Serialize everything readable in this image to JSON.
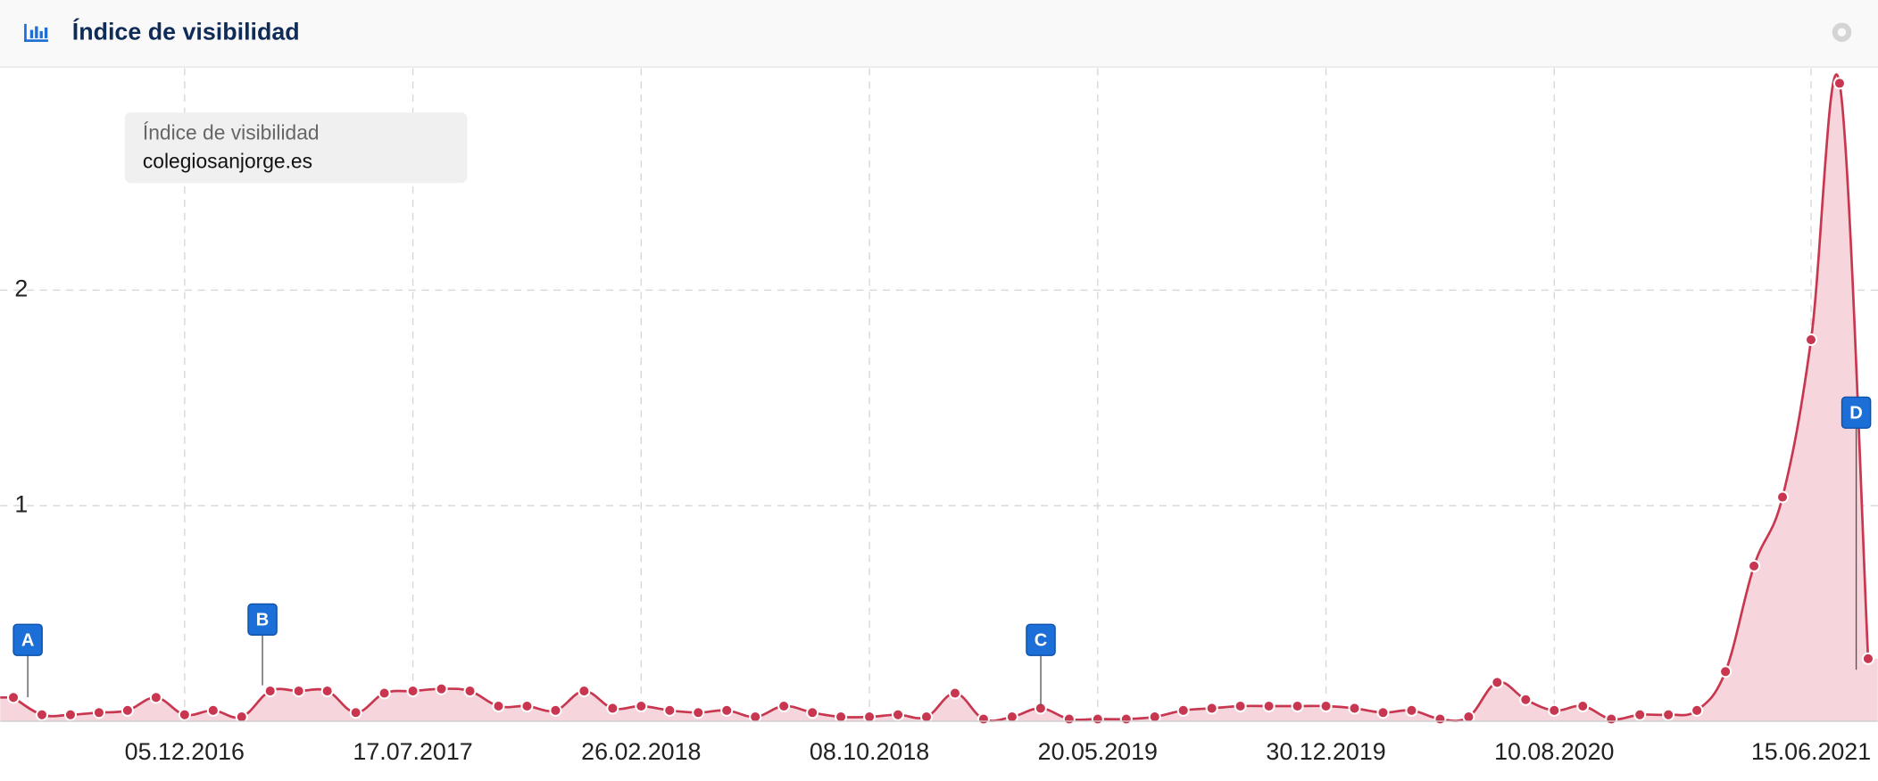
{
  "header": {
    "title": "Índice de visibilidad"
  },
  "chart_data": {
    "type": "line",
    "legend_title": "Índice de visibilidad",
    "categories": [
      null,
      null,
      null,
      null,
      null,
      null,
      "05.12.2016",
      null,
      null,
      null,
      null,
      null,
      null,
      null,
      "17.07.2017",
      null,
      null,
      null,
      null,
      null,
      null,
      null,
      "26.02.2018",
      null,
      null,
      null,
      null,
      null,
      null,
      null,
      "08.10.2018",
      null,
      null,
      null,
      null,
      null,
      null,
      null,
      "20.05.2019",
      null,
      null,
      null,
      null,
      null,
      null,
      null,
      "30.12.2019",
      null,
      null,
      null,
      null,
      null,
      null,
      null,
      "10.08.2020",
      null,
      null,
      null,
      null,
      null,
      null,
      null,
      null,
      "15.06.2021",
      null,
      null
    ],
    "series": [
      {
        "name": "colegiosanjorge.es",
        "color": "#c8374f",
        "fill": "#f6d6dc",
        "values": [
          0.11,
          0.03,
          0.03,
          0.04,
          0.05,
          0.11,
          0.03,
          0.05,
          0.02,
          0.14,
          0.14,
          0.14,
          0.04,
          0.13,
          0.14,
          0.15,
          0.14,
          0.07,
          0.07,
          0.05,
          0.14,
          0.06,
          0.07,
          0.05,
          0.04,
          0.05,
          0.02,
          0.07,
          0.04,
          0.02,
          0.02,
          0.03,
          0.02,
          0.13,
          0.01,
          0.02,
          0.06,
          0.01,
          0.01,
          0.01,
          0.02,
          0.05,
          0.06,
          0.07,
          0.07,
          0.07,
          0.07,
          0.06,
          0.04,
          0.05,
          0.01,
          0.02,
          0.18,
          0.1,
          0.05,
          0.07,
          0.01,
          0.03,
          0.03,
          0.05,
          0.23,
          0.72,
          1.04,
          1.77,
          2.96,
          0.29
        ]
      }
    ],
    "ylim": [
      0,
      3.03
    ],
    "yticks": [
      1,
      2
    ],
    "grid": true,
    "annotations": [
      {
        "label": "A"
      },
      {
        "label": "B"
      },
      {
        "label": "C"
      },
      {
        "label": "D"
      }
    ]
  }
}
